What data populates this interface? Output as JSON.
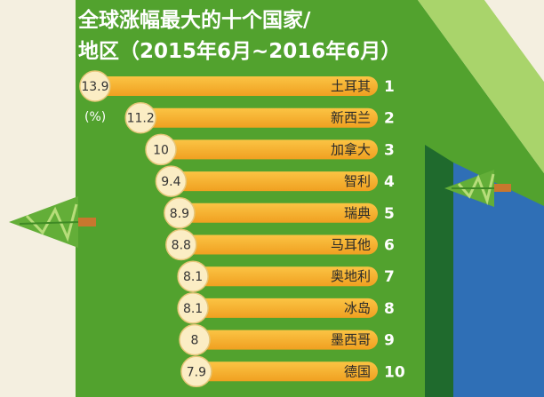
{
  "colors": {
    "page_background": "#f4efe0",
    "main_green": "#52a22e",
    "light_green": "#a9d46b",
    "dark_green": "#1f6a2d",
    "blue": "#2f6fb6",
    "bar_top": "#fbc444",
    "bar_bottom": "#f0a021",
    "circle_fill": "#fbedc4",
    "circle_stroke": "#e6c678",
    "tree_green": "#63ae38",
    "tree_trunk": "#c8772e"
  },
  "chart_data": {
    "type": "bar",
    "orientation": "horizontal",
    "title": [
      "全球涨幅最大的十个国家/",
      "地区（2015年6月~2016年6月）"
    ],
    "unit": "(%)",
    "categories": [
      "土耳其",
      "新西兰",
      "加拿大",
      "智利",
      "瑞典",
      "马耳他",
      "奥地利",
      "冰岛",
      "墨西哥",
      "德国"
    ],
    "values": [
      13.9,
      11.2,
      10,
      9.4,
      8.9,
      8.8,
      8.1,
      8.1,
      8,
      7.9
    ],
    "ranks": [
      1,
      2,
      3,
      4,
      5,
      6,
      7,
      8,
      9,
      10
    ],
    "grid": false,
    "legend": "none"
  }
}
